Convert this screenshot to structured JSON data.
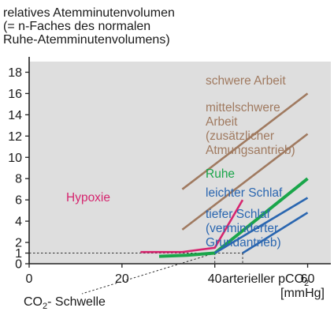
{
  "chart_data": {
    "type": "line",
    "title_lines": [
      "relatives Atemminutenvolumen",
      "(= n-Faches des normalen",
      "Ruhe-Atemminutenvolumens)"
    ],
    "xlabel": "arterieller pCO2",
    "xlabel_parts": [
      "arterieller  pCO",
      "2"
    ],
    "xunit": "[mmHg]",
    "xlim": [
      0,
      65
    ],
    "ylim": [
      0,
      19
    ],
    "xticks": [
      0,
      20,
      40,
      60
    ],
    "xtick_labels": [
      "0",
      "20",
      "40",
      "60"
    ],
    "yticks": [
      0,
      1,
      2,
      4,
      6,
      8,
      10,
      12,
      14,
      16,
      18
    ],
    "ytick_labels": [
      "0",
      "1",
      "2",
      "4",
      "6",
      "8",
      "10",
      "12",
      "14",
      "16",
      "18"
    ],
    "grid": false,
    "reference_line": {
      "y": 1,
      "style": "dashed"
    },
    "series": [
      {
        "name": "schwere Arbeit",
        "color": "#a07a60",
        "x": [
          33,
          60
        ],
        "y": [
          7,
          16
        ]
      },
      {
        "name": "mittelschwere Arbeit (zusätzlicher Atmungsantrieb)",
        "color": "#a07a60",
        "x": [
          33,
          60
        ],
        "y": [
          3.2,
          12.2
        ]
      },
      {
        "name": "Hypoxie",
        "color": "#d6266f",
        "x": [
          24,
          33,
          40,
          46
        ],
        "y": [
          1.1,
          1.1,
          1.5,
          6
        ]
      },
      {
        "name": "Ruhe",
        "color": "#1aa64a",
        "x": [
          28,
          34,
          40,
          60
        ],
        "y": [
          0.7,
          0.8,
          1.0,
          8
        ]
      },
      {
        "name": "leichter Schlaf",
        "color": "#2a66b0",
        "x": [
          40,
          60
        ],
        "y": [
          1.0,
          6.2
        ]
      },
      {
        "name": "tiefer Schlaf (verminderter Grundantrieb)",
        "color": "#2a66b0",
        "x": [
          46,
          60
        ],
        "y": [
          1.0,
          4.8
        ]
      }
    ],
    "annotations": [
      {
        "text": "schwere Arbeit",
        "color": "#a07a60"
      },
      {
        "text": "mittelschwere\nArbeit\n(zusätzlicher\nAtmungsantrieb)",
        "color": "#a07a60"
      },
      {
        "text": "Hypoxie",
        "color": "#d6266f"
      },
      {
        "text": "Ruhe",
        "color": "#1aa64a"
      },
      {
        "text": "leichter Schlaf",
        "color": "#2a66b0"
      },
      {
        "text": "tiefer Schlaf\n(verminderter\nGrundantrieb)",
        "color": "#2a66b0"
      }
    ],
    "threshold_label": {
      "text_parts": [
        "CO",
        "2",
        "- Schwelle"
      ],
      "x": 40
    },
    "threshold_markers_x": [
      40,
      46
    ]
  },
  "colors": {
    "plot_background": "#dedede",
    "axis": "#222222"
  }
}
